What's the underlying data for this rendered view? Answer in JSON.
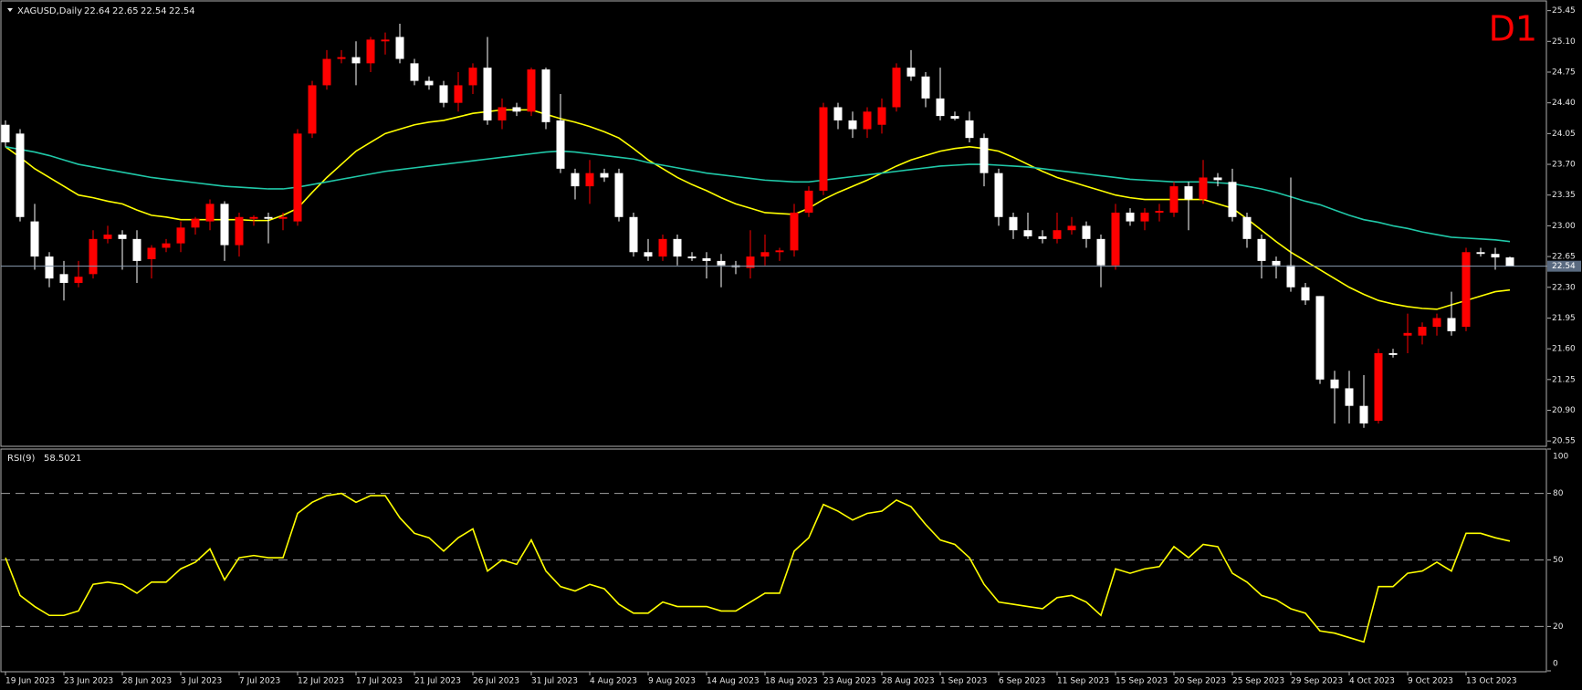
{
  "chart_data": [
    {
      "type": "candlestick",
      "title": "XAGUSD,Daily",
      "timeframe_label": "D1",
      "up_color": "#ff0000",
      "down_color": "#ffffff",
      "background": "#000000",
      "categories": [
        "19 Jun 2023",
        null,
        null,
        null,
        "23 Jun 2023",
        null,
        null,
        null,
        "28 Jun 2023",
        null,
        null,
        null,
        "3 Jul 2023",
        null,
        null,
        null,
        "7 Jul 2023",
        null,
        null,
        null,
        "12 Jul 2023",
        null,
        null,
        null,
        "17 Jul 2023",
        null,
        null,
        null,
        "21 Jul 2023",
        null,
        null,
        null,
        "26 Jul 2023",
        null,
        null,
        null,
        "31 Jul 2023",
        null,
        null,
        null,
        "4 Aug 2023",
        null,
        null,
        null,
        "9 Aug 2023",
        null,
        null,
        null,
        "14 Aug 2023",
        null,
        null,
        null,
        "18 Aug 2023",
        null,
        null,
        null,
        "23 Aug 2023",
        null,
        null,
        null,
        "28 Aug 2023",
        null,
        null,
        null,
        "1 Sep 2023",
        null,
        null,
        null,
        "6 Sep 2023",
        null,
        null,
        null,
        "11 Sep 2023",
        null,
        null,
        null,
        "15 Sep 2023",
        null,
        null,
        null,
        "20 Sep 2023",
        null,
        null,
        null,
        "25 Sep 2023",
        null,
        null,
        null,
        "29 Sep 2023",
        null,
        null,
        null,
        "4 Oct 2023",
        null,
        null,
        null,
        "9 Oct 2023",
        null,
        null,
        null,
        "13 Oct 2023",
        null,
        null,
        null
      ],
      "open": [
        24.15,
        24.05,
        23.05,
        22.65,
        22.45,
        22.35,
        22.45,
        22.85,
        22.9,
        22.85,
        22.62,
        22.75,
        22.8,
        22.98,
        23.05,
        23.25,
        22.78,
        23.08,
        23.1,
        23.08,
        23.05,
        24.05,
        24.6,
        24.9,
        24.92,
        24.85,
        25.1,
        25.15,
        24.85,
        24.65,
        24.6,
        24.4,
        24.6,
        24.8,
        24.2,
        24.35,
        24.3,
        24.78,
        24.2,
        23.6,
        23.45,
        23.6,
        23.6,
        23.1,
        22.7,
        22.65,
        22.85,
        22.65,
        22.63,
        22.6,
        22.55,
        22.52,
        22.65,
        22.7,
        22.72,
        23.15,
        23.4,
        24.35,
        24.2,
        24.1,
        24.15,
        24.35,
        24.8,
        24.7,
        24.45,
        24.25,
        24.2,
        24.0,
        23.6,
        23.1,
        22.95,
        22.88,
        22.85,
        22.95,
        23.0,
        22.85,
        22.55,
        23.15,
        23.05,
        23.15,
        23.15,
        23.45,
        23.3,
        23.55,
        23.5,
        23.1,
        22.85,
        22.6,
        22.55,
        22.3,
        22.2,
        21.25,
        21.15,
        20.95,
        20.78,
        21.55,
        21.75,
        21.75,
        21.85,
        21.95,
        21.85,
        22.7,
        22.68,
        22.64
      ],
      "high": [
        24.2,
        24.1,
        23.25,
        22.7,
        22.6,
        22.6,
        22.95,
        23.0,
        22.95,
        22.95,
        22.78,
        22.85,
        23.05,
        23.1,
        23.3,
        23.28,
        23.15,
        23.12,
        23.15,
        23.15,
        24.1,
        24.65,
        25.0,
        25.0,
        25.1,
        25.15,
        25.2,
        25.3,
        24.9,
        24.7,
        24.65,
        24.75,
        24.85,
        25.15,
        24.45,
        24.4,
        24.8,
        24.8,
        24.5,
        23.65,
        23.75,
        23.65,
        23.65,
        23.15,
        22.85,
        22.9,
        22.9,
        22.7,
        22.7,
        22.68,
        22.6,
        22.95,
        22.9,
        22.75,
        23.25,
        23.45,
        24.4,
        24.4,
        24.3,
        24.35,
        24.45,
        24.85,
        25.0,
        24.75,
        24.8,
        24.3,
        24.3,
        24.05,
        23.65,
        23.15,
        23.15,
        22.95,
        23.15,
        23.1,
        23.05,
        22.9,
        23.25,
        23.2,
        23.2,
        23.25,
        23.5,
        23.5,
        23.75,
        23.6,
        23.65,
        23.15,
        22.9,
        22.65,
        23.55,
        22.35,
        22.2,
        21.35,
        21.35,
        21.3,
        21.6,
        21.6,
        22.0,
        21.9,
        22.0,
        22.25,
        22.75,
        22.75,
        22.75,
        22.65
      ],
      "low": [
        23.9,
        23.05,
        22.5,
        22.3,
        22.15,
        22.3,
        22.4,
        22.8,
        22.5,
        22.35,
        22.4,
        22.7,
        22.7,
        22.9,
        22.95,
        22.6,
        22.65,
        23.0,
        22.8,
        22.95,
        23.0,
        24.0,
        24.55,
        24.85,
        24.6,
        24.75,
        24.95,
        24.85,
        24.6,
        24.55,
        24.35,
        24.3,
        24.5,
        24.15,
        24.1,
        24.25,
        24.25,
        24.1,
        23.6,
        23.3,
        23.25,
        23.5,
        23.05,
        22.65,
        22.6,
        22.6,
        22.55,
        22.6,
        22.4,
        22.3,
        22.45,
        22.4,
        22.55,
        22.6,
        22.65,
        23.1,
        23.35,
        24.1,
        24.0,
        24.0,
        24.05,
        24.3,
        24.65,
        24.35,
        24.2,
        24.2,
        23.95,
        23.45,
        23.0,
        22.85,
        22.85,
        22.8,
        22.8,
        22.9,
        22.75,
        22.3,
        22.5,
        23.0,
        22.95,
        23.05,
        23.1,
        22.95,
        23.25,
        23.45,
        23.05,
        22.75,
        22.4,
        22.4,
        22.25,
        22.1,
        21.2,
        20.75,
        20.75,
        20.7,
        20.75,
        21.5,
        21.55,
        21.65,
        21.75,
        21.75,
        21.8,
        22.65,
        22.5,
        22.54
      ],
      "close": [
        23.95,
        23.1,
        22.65,
        22.4,
        22.35,
        22.42,
        22.85,
        22.9,
        22.85,
        22.6,
        22.75,
        22.8,
        22.98,
        23.08,
        23.25,
        22.78,
        23.1,
        23.1,
        23.08,
        23.1,
        24.05,
        24.6,
        24.9,
        24.92,
        24.85,
        25.12,
        25.12,
        24.9,
        24.65,
        24.6,
        24.4,
        24.6,
        24.8,
        24.2,
        24.35,
        24.3,
        24.78,
        24.18,
        23.65,
        23.45,
        23.6,
        23.55,
        23.1,
        22.7,
        22.65,
        22.85,
        22.65,
        22.63,
        22.6,
        22.55,
        22.53,
        22.65,
        22.7,
        22.72,
        23.15,
        23.4,
        24.35,
        24.2,
        24.1,
        24.3,
        24.35,
        24.8,
        24.7,
        24.45,
        24.25,
        24.22,
        24.0,
        23.6,
        23.1,
        22.95,
        22.88,
        22.85,
        22.95,
        23.0,
        22.85,
        22.55,
        23.15,
        23.05,
        23.15,
        23.17,
        23.45,
        23.3,
        23.55,
        23.52,
        23.1,
        22.85,
        22.6,
        22.55,
        22.3,
        22.15,
        21.25,
        21.15,
        20.95,
        20.75,
        21.55,
        21.53,
        21.78,
        21.85,
        21.95,
        21.8,
        22.7,
        22.68,
        22.64,
        22.54
      ],
      "lines": [
        {
          "color": "#ffff00",
          "values": [
            23.9,
            23.78,
            23.65,
            23.55,
            23.45,
            23.35,
            23.32,
            23.28,
            23.25,
            23.18,
            23.12,
            23.1,
            23.07,
            23.07,
            23.07,
            23.07,
            23.07,
            23.06,
            23.06,
            23.12,
            23.2,
            23.38,
            23.55,
            23.7,
            23.85,
            23.95,
            24.05,
            24.1,
            24.15,
            24.18,
            24.2,
            24.24,
            24.28,
            24.3,
            24.32,
            24.32,
            24.32,
            24.27,
            24.22,
            24.18,
            24.13,
            24.07,
            24.0,
            23.88,
            23.75,
            23.65,
            23.55,
            23.47,
            23.4,
            23.32,
            23.25,
            23.2,
            23.15,
            23.14,
            23.13,
            23.2,
            23.3,
            23.38,
            23.45,
            23.52,
            23.6,
            23.68,
            23.75,
            23.8,
            23.85,
            23.88,
            23.9,
            23.88,
            23.85,
            23.78,
            23.7,
            23.62,
            23.55,
            23.5,
            23.45,
            23.4,
            23.35,
            23.32,
            23.3,
            23.3,
            23.3,
            23.3,
            23.3,
            23.25,
            23.2,
            23.08,
            22.95,
            22.82,
            22.7,
            22.6,
            22.5,
            22.4,
            22.3,
            22.22,
            22.15,
            22.11,
            22.08,
            22.06,
            22.05,
            22.1,
            22.15,
            22.2,
            22.25,
            22.27
          ]
        },
        {
          "color": "#20c8a8",
          "values": [
            23.9,
            23.87,
            23.84,
            23.8,
            23.75,
            23.7,
            23.67,
            23.64,
            23.61,
            23.58,
            23.55,
            23.53,
            23.51,
            23.49,
            23.47,
            23.45,
            23.44,
            23.43,
            23.42,
            23.42,
            23.44,
            23.47,
            23.5,
            23.53,
            23.56,
            23.59,
            23.62,
            23.64,
            23.66,
            23.68,
            23.7,
            23.72,
            23.74,
            23.76,
            23.78,
            23.8,
            23.82,
            23.84,
            23.85,
            23.84,
            23.82,
            23.8,
            23.78,
            23.76,
            23.72,
            23.69,
            23.66,
            23.63,
            23.6,
            23.58,
            23.56,
            23.54,
            23.52,
            23.51,
            23.5,
            23.5,
            23.52,
            23.54,
            23.56,
            23.58,
            23.6,
            23.62,
            23.64,
            23.66,
            23.68,
            23.69,
            23.7,
            23.7,
            23.69,
            23.68,
            23.67,
            23.65,
            23.63,
            23.61,
            23.59,
            23.57,
            23.55,
            23.53,
            23.52,
            23.51,
            23.5,
            23.5,
            23.5,
            23.49,
            23.48,
            23.45,
            23.42,
            23.38,
            23.33,
            23.28,
            23.24,
            23.18,
            23.12,
            23.07,
            23.04,
            23.0,
            22.97,
            22.93,
            22.9,
            22.87,
            22.86,
            22.85,
            22.84,
            22.82
          ]
        }
      ],
      "ylim": [
        20.5,
        25.55
      ],
      "yticks": [
        25.45,
        {
          "value": 25.1,
          "label": "25.10"
        },
        24.75,
        {
          "value": 24.4,
          "label": "24.40"
        },
        24.05,
        {
          "value": 23.7,
          "label": "23.70"
        },
        23.35,
        {
          "value": 23.0,
          "label": "23.00"
        },
        22.65,
        {
          "value": 22.3,
          "label": "22.30"
        },
        21.95,
        {
          "value": 21.6,
          "label": "21.60"
        },
        21.25,
        {
          "value": 20.9,
          "label": "20.90"
        },
        20.55
      ]
    },
    {
      "type": "line",
      "title": "RSI(9)",
      "color": "#ffff00",
      "values": [
        51,
        34,
        29,
        25,
        25,
        27,
        39,
        40,
        39,
        35,
        40,
        40,
        46,
        49,
        55,
        41,
        51,
        52,
        51,
        51,
        71,
        76,
        79,
        80,
        76,
        79,
        79,
        69,
        62,
        60,
        54,
        60,
        64,
        45,
        50,
        48,
        59,
        45,
        38,
        36,
        39,
        37,
        30,
        26,
        26,
        31,
        29,
        29,
        29,
        27,
        27,
        31,
        35,
        35,
        54,
        60,
        75,
        72,
        68,
        71,
        72,
        77,
        74,
        66,
        59,
        57,
        51,
        39,
        31,
        30,
        29,
        28,
        33,
        34,
        31,
        25,
        46,
        44,
        46,
        47,
        56,
        51,
        57,
        56,
        44,
        40,
        34,
        32,
        28,
        26,
        18,
        17,
        15,
        13,
        38,
        38,
        44,
        45,
        49,
        45,
        62,
        62,
        60,
        58.5021
      ],
      "ylim": [
        0,
        100
      ],
      "yticks": [
        100,
        80,
        50,
        20,
        0
      ],
      "levels": [
        80,
        50,
        20
      ]
    }
  ]
}
